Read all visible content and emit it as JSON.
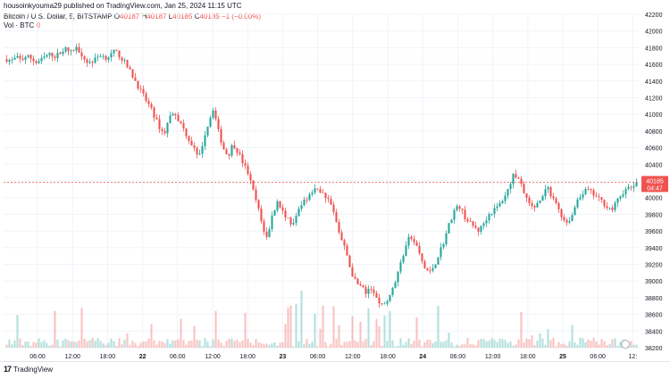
{
  "publisher": "housoinkyouma29 published on TradingView.com, Jan 25, 2024 11:15 UTC",
  "legend": {
    "symbol": "Bitcoin / U.S. Dollar, 5, BITSTAMP",
    "o_label": "O",
    "o_value": "40187",
    "h_label": "H",
    "h_value": "40187",
    "l_label": "L",
    "l_value": "40185",
    "c_label": "C",
    "c_value": "40185",
    "change": "−1 (−0.00%)"
  },
  "volume_legend": {
    "label": "Vol · BTC",
    "value": "0"
  },
  "price_tag": {
    "price": "40185",
    "countdown": "04:47",
    "color": "#ef5350"
  },
  "brand": "TradingView",
  "colors": {
    "up": "#26a69a",
    "down": "#ef5350",
    "grid": "#f0f3fa",
    "axis_text": "#131722"
  },
  "chart_data": {
    "type": "candlestick",
    "title": "Bitcoin / U.S. Dollar, 5, BITSTAMP",
    "ylim": [
      38200,
      42200
    ],
    "y_ticks": [
      "42200",
      "42000",
      "41800",
      "41600",
      "41400",
      "41200",
      "41000",
      "40800",
      "40600",
      "40400",
      "40200",
      "40000",
      "39800",
      "39600",
      "39400",
      "39200",
      "39000",
      "38800",
      "38600",
      "38400",
      "38200"
    ],
    "x_tick_labels": [
      "06:00",
      "12:00",
      "18:00",
      "22",
      "06:00",
      "12:00",
      "18:00",
      "23",
      "06:00",
      "12:00",
      "18:00",
      "24",
      "06:00",
      "12:00",
      "18:00",
      "25",
      "06:00",
      "12:"
    ],
    "grid": true,
    "last_price": 40185,
    "price_path": [
      [
        0,
        41660
      ],
      [
        3,
        41640
      ],
      [
        6,
        41680
      ],
      [
        9,
        41650
      ],
      [
        12,
        41700
      ],
      [
        15,
        41670
      ],
      [
        18,
        41620
      ],
      [
        21,
        41650
      ],
      [
        24,
        41700
      ],
      [
        27,
        41720
      ],
      [
        30,
        41690
      ],
      [
        33,
        41760
      ],
      [
        36,
        41780
      ],
      [
        39,
        41740
      ],
      [
        42,
        41800
      ],
      [
        45,
        41750
      ],
      [
        48,
        41640
      ],
      [
        51,
        41620
      ],
      [
        54,
        41660
      ],
      [
        57,
        41720
      ],
      [
        60,
        41680
      ],
      [
        63,
        41700
      ],
      [
        66,
        41760
      ],
      [
        69,
        41700
      ],
      [
        72,
        41620
      ],
      [
        75,
        41520
      ],
      [
        78,
        41420
      ],
      [
        81,
        41300
      ],
      [
        84,
        41200
      ],
      [
        87,
        41100
      ],
      [
        90,
        40980
      ],
      [
        93,
        40850
      ],
      [
        96,
        40760
      ],
      [
        99,
        40950
      ],
      [
        102,
        41050
      ],
      [
        105,
        40920
      ],
      [
        108,
        40820
      ],
      [
        111,
        40700
      ],
      [
        114,
        40600
      ],
      [
        117,
        40450
      ],
      [
        120,
        40700
      ],
      [
        123,
        40900
      ],
      [
        126,
        41080
      ],
      [
        129,
        40800
      ],
      [
        132,
        40600
      ],
      [
        135,
        40500
      ],
      [
        138,
        40650
      ],
      [
        141,
        40550
      ],
      [
        144,
        40420
      ],
      [
        147,
        40300
      ],
      [
        150,
        40100
      ],
      [
        153,
        39900
      ],
      [
        156,
        39650
      ],
      [
        159,
        39500
      ],
      [
        162,
        39800
      ],
      [
        165,
        39950
      ],
      [
        168,
        39850
      ],
      [
        171,
        39750
      ],
      [
        174,
        39650
      ],
      [
        177,
        39800
      ],
      [
        180,
        39950
      ],
      [
        183,
        40000
      ],
      [
        186,
        40060
      ],
      [
        189,
        40100
      ],
      [
        192,
        40070
      ],
      [
        195,
        40000
      ],
      [
        198,
        39900
      ],
      [
        201,
        39700
      ],
      [
        204,
        39500
      ],
      [
        207,
        39350
      ],
      [
        210,
        39100
      ],
      [
        213,
        39000
      ],
      [
        216,
        38950
      ],
      [
        219,
        38850
      ],
      [
        222,
        38900
      ],
      [
        225,
        38800
      ],
      [
        228,
        38700
      ],
      [
        231,
        38750
      ],
      [
        234,
        38850
      ],
      [
        237,
        39000
      ],
      [
        240,
        39200
      ],
      [
        243,
        39400
      ],
      [
        246,
        39550
      ],
      [
        249,
        39450
      ],
      [
        252,
        39300
      ],
      [
        255,
        39150
      ],
      [
        258,
        39100
      ],
      [
        261,
        39200
      ],
      [
        264,
        39350
      ],
      [
        267,
        39500
      ],
      [
        270,
        39700
      ],
      [
        273,
        39850
      ],
      [
        276,
        39900
      ],
      [
        279,
        39780
      ],
      [
        282,
        39700
      ],
      [
        285,
        39650
      ],
      [
        288,
        39600
      ],
      [
        291,
        39700
      ],
      [
        294,
        39800
      ],
      [
        297,
        39850
      ],
      [
        300,
        39900
      ],
      [
        303,
        40000
      ],
      [
        306,
        40100
      ],
      [
        309,
        40300
      ],
      [
        312,
        40200
      ],
      [
        315,
        40100
      ],
      [
        318,
        39950
      ],
      [
        321,
        39850
      ],
      [
        324,
        39950
      ],
      [
        327,
        40050
      ],
      [
        330,
        40100
      ],
      [
        333,
        40000
      ],
      [
        336,
        39900
      ],
      [
        339,
        39750
      ],
      [
        342,
        39700
      ],
      [
        345,
        39800
      ],
      [
        348,
        39950
      ],
      [
        351,
        40050
      ],
      [
        354,
        40100
      ],
      [
        357,
        40050
      ],
      [
        360,
        40000
      ],
      [
        363,
        39950
      ],
      [
        366,
        39900
      ],
      [
        369,
        39850
      ],
      [
        372,
        39950
      ],
      [
        375,
        40050
      ],
      [
        378,
        40100
      ],
      [
        381,
        40120
      ],
      [
        384,
        40185
      ]
    ],
    "volume_max_btc": 80
  }
}
